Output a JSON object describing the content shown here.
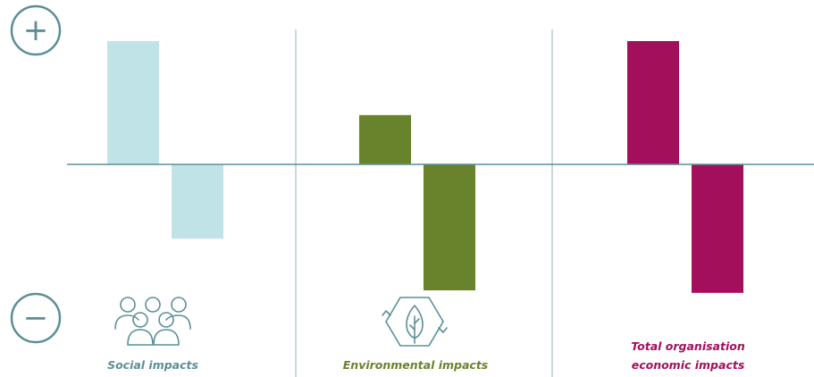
{
  "chart_data": {
    "type": "bar",
    "title": "",
    "xlabel": "",
    "ylabel": "",
    "axis_markers": {
      "positive": "+",
      "negative": "−"
    },
    "ylim": [
      -1.05,
      1.05
    ],
    "grid": false,
    "legend": "none",
    "categories": [
      {
        "id": "social",
        "label": [
          "Social impacts"
        ],
        "color": "#c0e3e7",
        "label_color": "#5b8f96",
        "icon": "people-group-icon"
      },
      {
        "id": "environmental",
        "label": [
          "Environmental impacts"
        ],
        "color": "#68832b",
        "label_color": "#68832b",
        "icon": "recycle-leaf-icon"
      },
      {
        "id": "economic",
        "label": [
          "Total organisation",
          "economic impacts"
        ],
        "color": "#a30f5a",
        "label_color": "#a30f5a",
        "icon": ""
      }
    ],
    "series": [
      {
        "values": [
          1.0,
          0.4,
          1.0
        ]
      },
      {
        "values": [
          -0.59,
          -1.0,
          -1.02
        ]
      }
    ],
    "colors": {
      "axis": "#5b8f96",
      "divider": "#8fb4b8"
    }
  }
}
